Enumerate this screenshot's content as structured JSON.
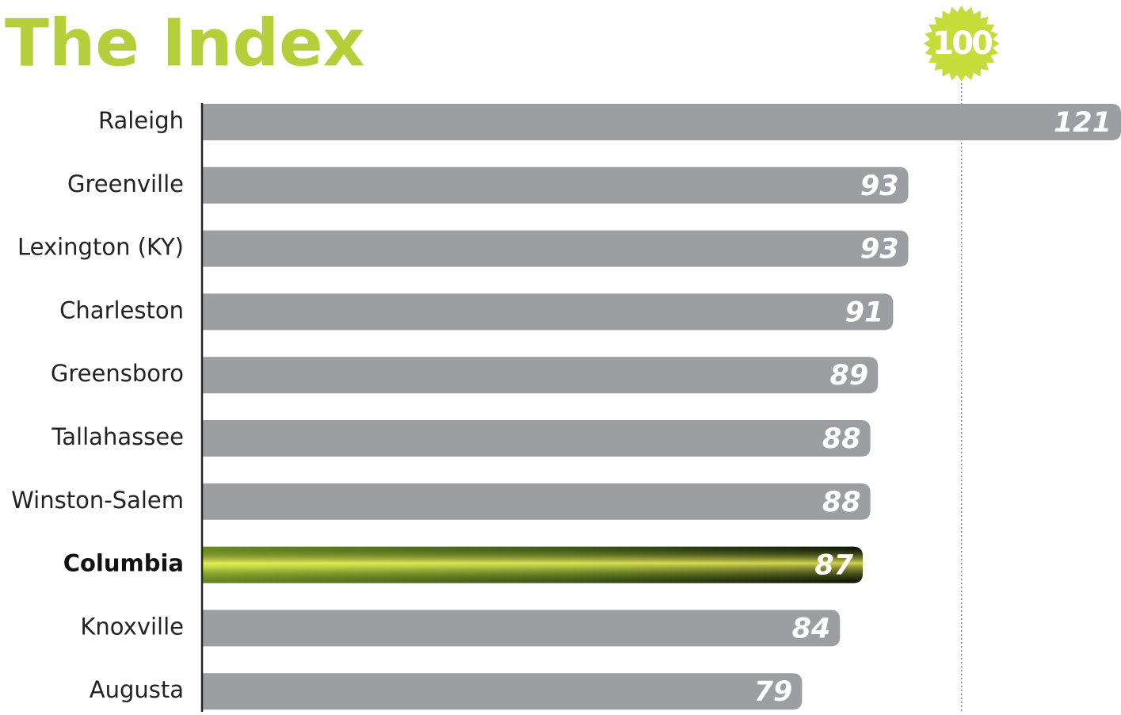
{
  "chart_data": {
    "type": "bar",
    "orientation": "horizontal",
    "title": "The Index",
    "categories": [
      "Raleigh",
      "Greenville",
      "Lexington (KY)",
      "Charleston",
      "Greensboro",
      "Tallahassee",
      "Winston-Salem",
      "Columbia",
      "Knoxville",
      "Augusta"
    ],
    "values": [
      121,
      93,
      93,
      91,
      89,
      88,
      88,
      87,
      84,
      79
    ],
    "color": "#9c9ea1",
    "colors": [
      "#9c9ea1",
      "#9c9ea1",
      "#9c9ea1",
      "#9c9ea1",
      "#9c9ea1",
      "#9c9ea1",
      "#9c9ea1",
      "#6e9a2a",
      "#9c9ea1",
      "#9c9ea1"
    ],
    "xlim": [
      0,
      121
    ],
    "reference_line": 100
  }
}
